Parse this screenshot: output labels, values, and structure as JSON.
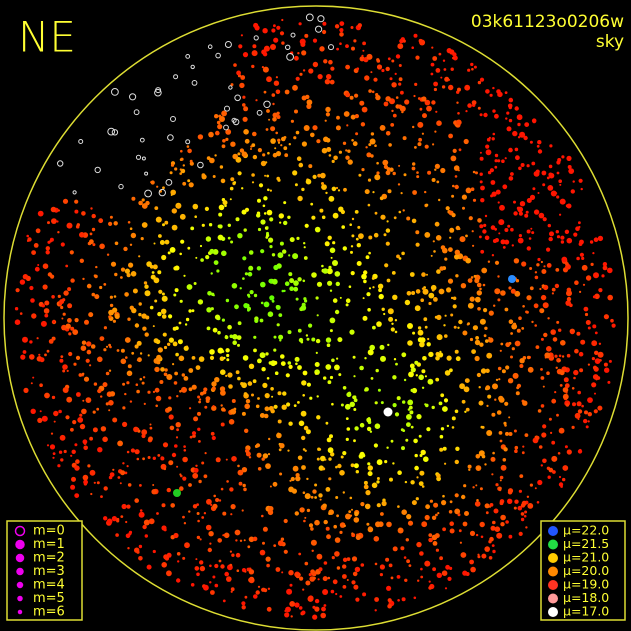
{
  "corner_label": "NE",
  "frame_id": "03k61123o0206w",
  "frame_type": "sky",
  "magnitude_legend": [
    "m=0",
    "m=1",
    "m=2",
    "m=3",
    "m=4",
    "m=5",
    "m=6"
  ],
  "brightness_legend": [
    "μ=22.0",
    "μ=21.5",
    "μ=21.0",
    "μ=20.0",
    "μ=19.0",
    "μ=18.0",
    "μ=17.0"
  ]
}
